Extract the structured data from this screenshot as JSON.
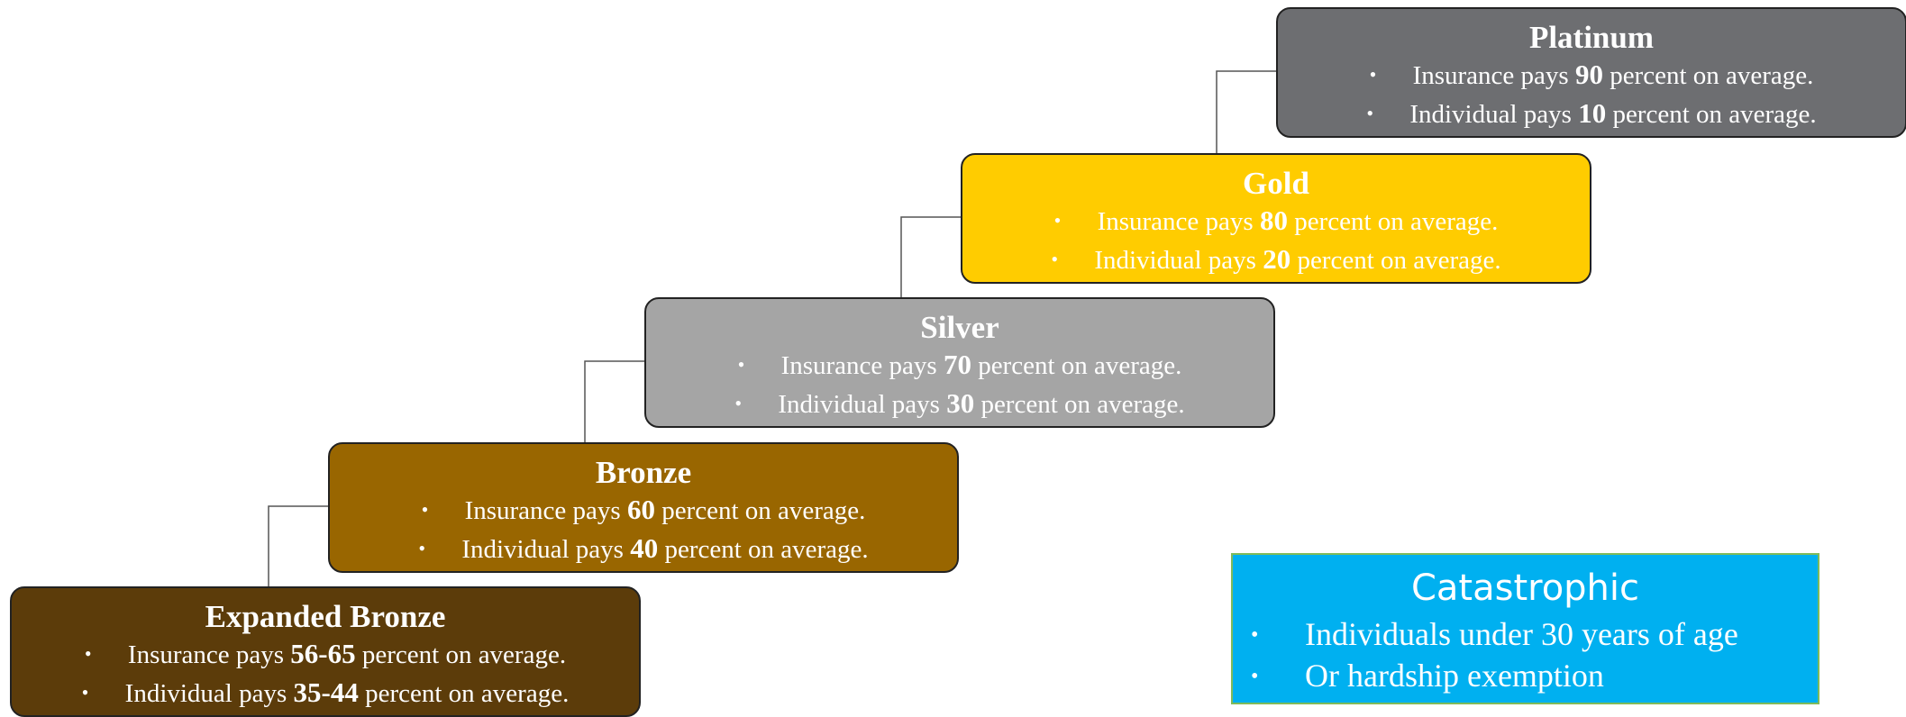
{
  "tiers": [
    {
      "name": "Platinum",
      "color": "#6d6e71",
      "bullets": [
        {
          "prefix": "Insurance pays ",
          "value": "90",
          "suffix": " percent on average."
        },
        {
          "prefix": "Individual pays ",
          "value": "10",
          "suffix": " percent on average."
        }
      ]
    },
    {
      "name": "Gold",
      "color": "#ffcc00",
      "bullets": [
        {
          "prefix": "Insurance pays ",
          "value": "80",
          "suffix": " percent on average."
        },
        {
          "prefix": "Individual pays ",
          "value": "20",
          "suffix": " percent on average."
        }
      ]
    },
    {
      "name": "Silver",
      "color": "#a5a5a5",
      "bullets": [
        {
          "prefix": "Insurance pays ",
          "value": "70",
          "suffix": " percent on average."
        },
        {
          "prefix": "Individual pays ",
          "value": "30",
          "suffix": " percent on average."
        }
      ]
    },
    {
      "name": "Bronze",
      "color": "#996600",
      "bullets": [
        {
          "prefix": "Insurance pays ",
          "value": "60",
          "suffix": " percent on average."
        },
        {
          "prefix": "Individual pays ",
          "value": "40",
          "suffix": " percent on average."
        }
      ]
    },
    {
      "name": "Expanded Bronze",
      "color": "#5c3c0a",
      "bullets": [
        {
          "prefix": "Insurance pays ",
          "value": "56-65",
          "suffix": " percent on average."
        },
        {
          "prefix": "Individual pays ",
          "value": "35-44",
          "suffix": " percent on average."
        }
      ]
    }
  ],
  "catastrophic": {
    "title": "Catastrophic",
    "bullets": [
      "Individuals under 30 years of age",
      "Or hardship exemption"
    ]
  }
}
